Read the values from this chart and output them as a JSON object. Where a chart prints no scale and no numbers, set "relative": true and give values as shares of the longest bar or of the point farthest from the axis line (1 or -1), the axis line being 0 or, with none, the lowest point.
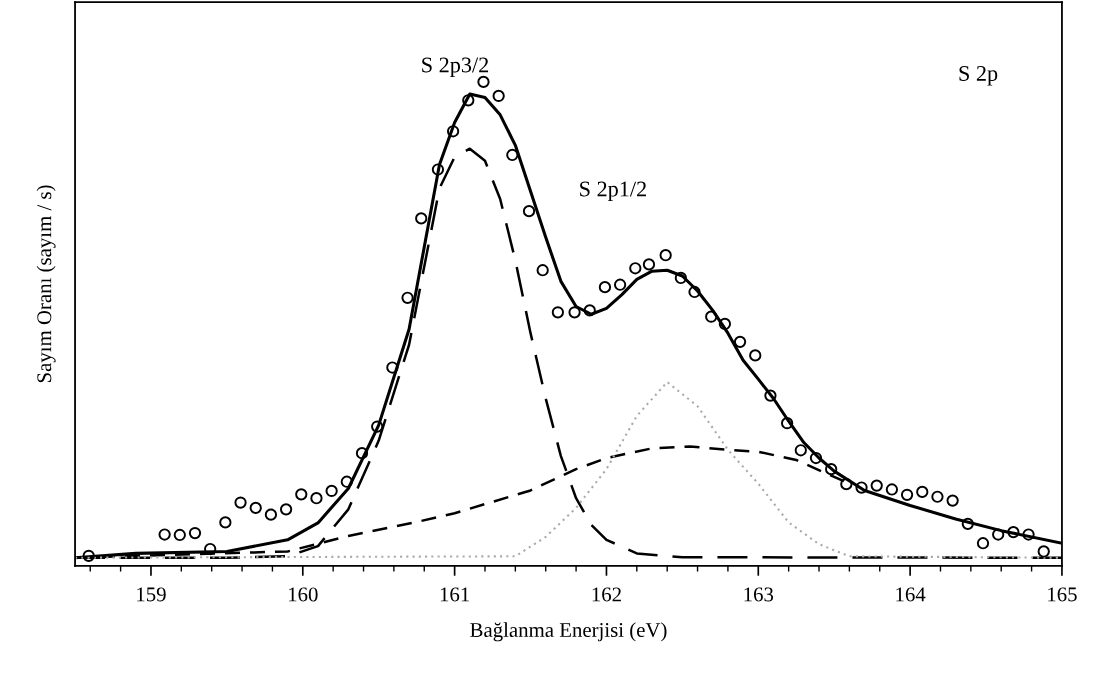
{
  "chart_data": {
    "type": "line",
    "relative": true,
    "xlabel": "Bağlanma Enerjisi (eV)",
    "ylabel": "Sayım Oranı (sayım / s)",
    "annotations": [
      "S 2p3/2",
      "S 2p1/2",
      "S 2p"
    ],
    "xlim": [
      158.5,
      165
    ],
    "xticks": [
      159,
      160,
      161,
      162,
      163,
      164,
      165
    ],
    "grid": false,
    "series": [
      {
        "type": "scatter",
        "marker": "circle",
        "color": "#000000",
        "x": [
          158.59,
          159.09,
          159.19,
          159.29,
          159.39,
          159.49,
          159.59,
          159.69,
          159.79,
          159.89,
          159.99,
          160.09,
          160.19,
          160.29,
          160.39,
          160.49,
          160.59,
          160.69,
          160.78,
          160.89,
          160.99,
          161.09,
          161.19,
          161.29,
          161.38,
          161.49,
          161.58,
          161.68,
          161.79,
          161.89,
          161.99,
          162.09,
          162.19,
          162.28,
          162.39,
          162.49,
          162.58,
          162.69,
          162.78,
          162.88,
          162.98,
          163.08,
          163.19,
          163.28,
          163.38,
          163.48,
          163.58,
          163.68,
          163.78,
          163.88,
          163.98,
          164.08,
          164.18,
          164.28,
          164.38,
          164.48,
          164.58,
          164.68,
          164.78,
          164.88
        ],
        "values": [
          0.021,
          0.065,
          0.064,
          0.068,
          0.035,
          0.09,
          0.131,
          0.12,
          0.106,
          0.117,
          0.148,
          0.14,
          0.155,
          0.174,
          0.233,
          0.288,
          0.41,
          0.554,
          0.718,
          0.819,
          0.898,
          0.962,
          1.0,
          0.971,
          0.849,
          0.733,
          0.611,
          0.524,
          0.524,
          0.528,
          0.576,
          0.581,
          0.615,
          0.623,
          0.642,
          0.595,
          0.566,
          0.515,
          0.5,
          0.463,
          0.435,
          0.352,
          0.295,
          0.239,
          0.223,
          0.2,
          0.169,
          0.162,
          0.166,
          0.158,
          0.147,
          0.153,
          0.143,
          0.135,
          0.087,
          0.047,
          0.065,
          0.07,
          0.065,
          0.03
        ]
      },
      {
        "line_style": "solid",
        "color": "#000000",
        "x": [
          158.5,
          158.9,
          159.5,
          159.9,
          160.1,
          160.3,
          160.5,
          160.7,
          160.9,
          161.0,
          161.1,
          161.2,
          161.3,
          161.4,
          161.5,
          161.6,
          161.7,
          161.8,
          161.9,
          162.0,
          162.1,
          162.2,
          162.3,
          162.4,
          162.5,
          162.6,
          162.7,
          162.8,
          162.9,
          163.0,
          163.1,
          163.2,
          163.3,
          163.4,
          163.5,
          163.7,
          164.0,
          164.3,
          164.6,
          165.0
        ],
        "values": [
          0.017,
          0.026,
          0.03,
          0.054,
          0.089,
          0.16,
          0.291,
          0.489,
          0.829,
          0.916,
          0.975,
          0.968,
          0.932,
          0.869,
          0.774,
          0.679,
          0.588,
          0.536,
          0.52,
          0.532,
          0.56,
          0.592,
          0.609,
          0.611,
          0.599,
          0.568,
          0.528,
          0.481,
          0.425,
          0.386,
          0.346,
          0.299,
          0.255,
          0.223,
          0.196,
          0.156,
          0.125,
          0.097,
          0.073,
          0.047
        ]
      },
      {
        "type": "line",
        "line_style": "dashed",
        "color": "#000000",
        "x": [
          158.5,
          159.5,
          159.9,
          160.1,
          160.3,
          160.5,
          160.7,
          160.9,
          161.0,
          161.1,
          161.2,
          161.3,
          161.4,
          161.5,
          161.6,
          161.7,
          161.8,
          161.9,
          162.0,
          162.2,
          162.5,
          165.0
        ],
        "values": [
          0.017,
          0.017,
          0.02,
          0.041,
          0.117,
          0.259,
          0.457,
          0.78,
          0.845,
          0.862,
          0.837,
          0.758,
          0.631,
          0.481,
          0.346,
          0.227,
          0.14,
          0.085,
          0.054,
          0.026,
          0.018,
          0.017
        ]
      },
      {
        "type": "line",
        "line_style": "dashed",
        "color": "#000000",
        "x": [
          158.5,
          159.9,
          160.3,
          160.78,
          161.0,
          161.5,
          161.8,
          162.0,
          162.3,
          162.55,
          162.8,
          163.0,
          163.25,
          163.6
        ],
        "values": [
          0.017,
          0.03,
          0.062,
          0.093,
          0.109,
          0.156,
          0.2,
          0.223,
          0.243,
          0.247,
          0.24,
          0.236,
          0.219,
          0.17
        ]
      },
      {
        "line_style": "dotted",
        "color": "#aaaaaa",
        "x": [
          158.5,
          161.4,
          161.6,
          161.8,
          162.0,
          162.2,
          162.4,
          162.6,
          162.8,
          163.0,
          163.2,
          163.4,
          163.6,
          165.0
        ],
        "values": [
          0.017,
          0.02,
          0.06,
          0.12,
          0.2,
          0.31,
          0.38,
          0.33,
          0.24,
          0.17,
          0.09,
          0.045,
          0.02,
          0.017
        ]
      }
    ]
  }
}
